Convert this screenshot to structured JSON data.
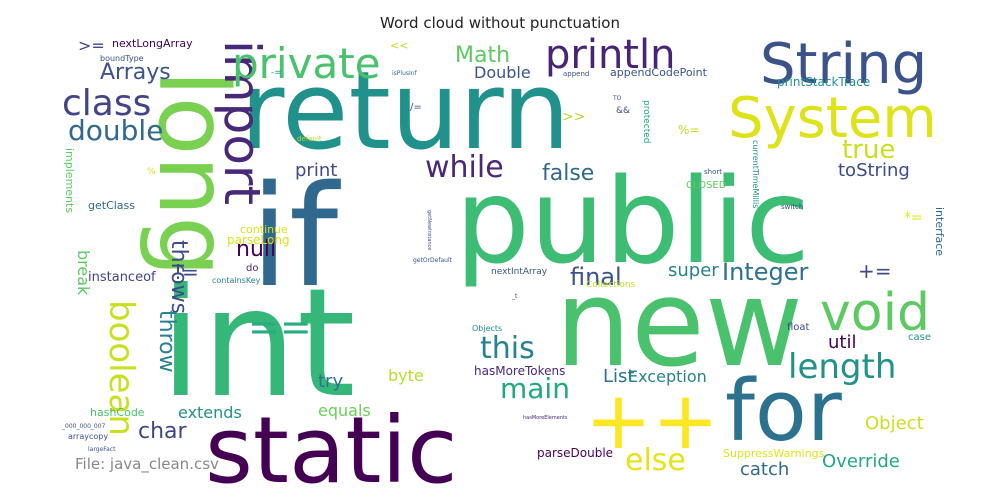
{
  "title": "Word cloud without punctuation",
  "footer": "File: java_clean.csv",
  "chart_data": {
    "type": "wordcloud",
    "title": "Word cloud without punctuation",
    "words": [
      {
        "text": "return",
        "size": 108,
        "color": "#21918c"
      },
      {
        "text": "int",
        "size": 150,
        "color": "#35b779"
      },
      {
        "text": "public",
        "size": 118,
        "color": "#3dbc74"
      },
      {
        "text": "if",
        "size": 140,
        "color": "#31688e"
      },
      {
        "text": "new",
        "size": 120,
        "color": "#4ac16d"
      },
      {
        "text": "long",
        "size": 96,
        "color": "#7ad151"
      },
      {
        "text": "static",
        "size": 92,
        "color": "#440154"
      },
      {
        "text": "for",
        "size": 85,
        "color": "#2c728e"
      },
      {
        "text": "++",
        "size": 80,
        "color": "#fde725"
      },
      {
        "text": "String",
        "size": 56,
        "color": "#3b528b"
      },
      {
        "text": "System",
        "size": 56,
        "color": "#dde318"
      },
      {
        "text": "import",
        "size": 50,
        "color": "#482878"
      },
      {
        "text": "void",
        "size": 52,
        "color": "#5ec962"
      },
      {
        "text": "private",
        "size": 42,
        "color": "#4ac16d"
      },
      {
        "text": "println",
        "size": 40,
        "color": "#482475"
      },
      {
        "text": "class",
        "size": 36,
        "color": "#414487"
      },
      {
        "text": "==",
        "size": 38,
        "color": "#27ad81"
      },
      {
        "text": "boolean",
        "size": 34,
        "color": "#c8e020"
      },
      {
        "text": "length",
        "size": 34,
        "color": "#21918c"
      },
      {
        "text": "this",
        "size": 30,
        "color": "#26828e"
      },
      {
        "text": "while",
        "size": 30,
        "color": "#482878"
      },
      {
        "text": "double",
        "size": 28,
        "color": "#31688e"
      },
      {
        "text": "main",
        "size": 28,
        "color": "#22a884"
      },
      {
        "text": "else",
        "size": 30,
        "color": "#e5e419"
      },
      {
        "text": "Integer",
        "size": 24,
        "color": "#2c728e"
      },
      {
        "text": "final",
        "size": 24,
        "color": "#3b528b"
      },
      {
        "text": "true",
        "size": 26,
        "color": "#c8e020"
      },
      {
        "text": "Math",
        "size": 22,
        "color": "#5ec962"
      },
      {
        "text": "Arrays",
        "size": 22,
        "color": "#3b528b"
      },
      {
        "text": "false",
        "size": 22,
        "color": "#31688e"
      },
      {
        "text": "null",
        "size": 22,
        "color": "#440154"
      },
      {
        "text": "char",
        "size": 22,
        "color": "#414487"
      },
      {
        "text": "throws",
        "size": 22,
        "color": "#3e4989"
      },
      {
        "text": "throw",
        "size": 22,
        "color": "#26828e"
      },
      {
        "text": "+=",
        "size": 20,
        "color": "#3e4989"
      },
      {
        "text": "!=",
        "size": 20,
        "color": "#3e4989"
      },
      {
        "text": "Override",
        "size": 18,
        "color": "#22a884"
      },
      {
        "text": "catch",
        "size": 18,
        "color": "#31688e"
      },
      {
        "text": "Object",
        "size": 18,
        "color": "#c8e020"
      },
      {
        "text": "util",
        "size": 18,
        "color": "#440154"
      },
      {
        "text": "super",
        "size": 18,
        "color": "#26828e"
      },
      {
        "text": "List",
        "size": 18,
        "color": "#2c728e"
      },
      {
        "text": "Exception",
        "size": 16,
        "color": "#26828e"
      },
      {
        "text": "print",
        "size": 18,
        "color": "#3e4989"
      },
      {
        "text": "toString",
        "size": 18,
        "color": "#3e4989"
      },
      {
        "text": "try",
        "size": 18,
        "color": "#2c728e"
      },
      {
        "text": "byte",
        "size": 16,
        "color": "#b5de2b"
      },
      {
        "text": "equals",
        "size": 16,
        "color": "#6ccd5a"
      },
      {
        "text": "extends",
        "size": 16,
        "color": "#21918c"
      },
      {
        "text": "break",
        "size": 16,
        "color": "#5ec962"
      },
      {
        "text": "Double",
        "size": 16,
        "color": "#3b528b"
      },
      {
        "text": "instanceof",
        "size": 13,
        "color": "#414487"
      },
      {
        "text": "parseDouble",
        "size": 12,
        "color": "#440154"
      },
      {
        "text": "hasMoreTokens",
        "size": 12,
        "color": "#482878"
      },
      {
        "text": "printStackTrace",
        "size": 12,
        "color": "#21918c"
      },
      {
        "text": "nextLongArray",
        "size": 11,
        "color": "#440154"
      },
      {
        "text": "appendCodePoint",
        "size": 11,
        "color": "#3b528b"
      },
      {
        "text": "parseLong",
        "size": 12,
        "color": "#d8e219"
      },
      {
        "text": "continue",
        "size": 11,
        "color": "#d8e219"
      },
      {
        "text": "getClass",
        "size": 11,
        "color": "#31688e"
      },
      {
        "text": "implements",
        "size": 11,
        "color": "#5ec962"
      },
      {
        "text": "interface",
        "size": 11,
        "color": "#31688e"
      },
      {
        "text": "nextIntArray",
        "size": 9,
        "color": "#3b528b"
      },
      {
        "text": "CLOSED",
        "size": 10,
        "color": "#5ec962"
      },
      {
        "text": "hashCode",
        "size": 11,
        "color": "#4ac16d"
      },
      {
        "text": "SuppressWarnings",
        "size": 11,
        "color": "#dde318"
      },
      {
        "text": "currentTimeMillis",
        "size": 8,
        "color": "#21918c"
      },
      {
        "text": "protected",
        "size": 9,
        "color": "#22a884"
      },
      {
        "text": "Collections",
        "size": 9,
        "color": "#bddf26"
      },
      {
        "text": "containsKey",
        "size": 8,
        "color": "#26828e"
      },
      {
        "text": "boundType",
        "size": 8,
        "color": "#3b528b"
      },
      {
        "text": "float",
        "size": 10,
        "color": "#3e4989"
      },
      {
        "text": "case",
        "size": 10,
        "color": "#21918c"
      },
      {
        "text": "do",
        "size": 10,
        "color": "#482878"
      },
      {
        "text": "Objects",
        "size": 8,
        "color": "#21918c"
      },
      {
        "text": "switch",
        "size": 7,
        "color": "#3b528b"
      },
      {
        "text": "short",
        "size": 7,
        "color": "#3b528b"
      },
      {
        "text": "append",
        "size": 7,
        "color": "#3b528b"
      },
      {
        "text": "default",
        "size": 7,
        "color": "#b5de2b"
      },
      {
        "text": "arraycopy",
        "size": 8,
        "color": "#3b528b"
      },
      {
        "text": "isPlusInf",
        "size": 6,
        "color": "#31688e"
      },
      {
        "text": "largeFact",
        "size": 6,
        "color": "#3b528b"
      },
      {
        "text": "getOrDefault",
        "size": 6,
        "color": "#3b528b"
      },
      {
        "text": "getNewInstance",
        "size": 5,
        "color": "#3b528b"
      },
      {
        "text": "hasMoreElements",
        "size": 5,
        "color": "#482878"
      },
      {
        "text": "_000_000_007",
        "size": 6,
        "color": "#3b528b"
      },
      {
        "text": ">=",
        "size": 16,
        "color": "#3e4989"
      },
      {
        "text": ">>",
        "size": 14,
        "color": "#b5de2b"
      },
      {
        "text": "<<",
        "size": 11,
        "color": "#b5de2b"
      },
      {
        "text": "/=",
        "size": 10,
        "color": "#3e4989"
      },
      {
        "text": "%=",
        "size": 12,
        "color": "#bddf26"
      },
      {
        "text": "*=",
        "size": 14,
        "color": "#e5e419"
      },
      {
        "text": "&&",
        "size": 9,
        "color": "#3b528b"
      },
      {
        "text": "-=",
        "size": 9,
        "color": "#21918c"
      },
      {
        "text": "%",
        "size": 9,
        "color": "#dde318"
      },
      {
        "text": "TO",
        "size": 6,
        "color": "#3b528b"
      },
      {
        "text": "_t",
        "size": 6,
        "color": "#3b528b"
      }
    ]
  }
}
